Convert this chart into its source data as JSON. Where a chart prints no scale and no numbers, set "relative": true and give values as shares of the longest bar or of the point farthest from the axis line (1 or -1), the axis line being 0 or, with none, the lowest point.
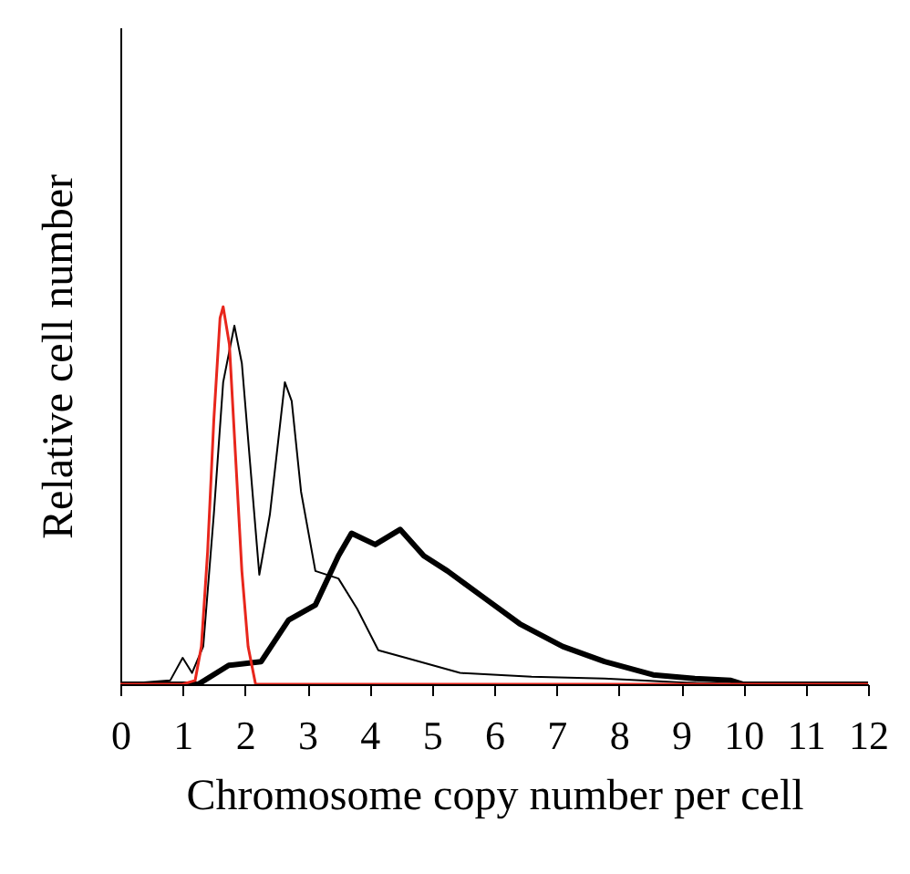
{
  "chart_data": {
    "type": "line",
    "relative": true,
    "xlabel": "Chromosome copy number per cell",
    "ylabel": "Relative cell number",
    "xlim": [
      0,
      12
    ],
    "xticks": [
      0,
      1,
      2,
      3,
      4,
      5,
      6,
      7,
      8,
      9,
      10,
      11,
      12
    ],
    "grid": false,
    "marker": "none",
    "line_style": "solid",
    "series": [
      {
        "color": "#000000",
        "x": [
          0,
          0.8,
          1.0,
          1.15,
          1.33,
          1.5,
          1.65,
          1.83,
          1.95,
          2.1,
          2.23,
          2.4,
          2.64,
          2.75,
          2.9,
          3.13,
          3.5,
          3.8,
          4.14,
          4.58,
          5.45,
          6.6,
          7.77,
          9.0,
          10.0,
          12
        ],
        "values": [
          0,
          0.01,
          0.07,
          0.03,
          0.1,
          0.45,
          0.8,
          0.95,
          0.85,
          0.55,
          0.29,
          0.45,
          0.8,
          0.75,
          0.51,
          0.3,
          0.28,
          0.2,
          0.09,
          0.07,
          0.03,
          0.02,
          0.015,
          0.005,
          0,
          0
        ]
      },
      {
        "color": "#000000",
        "x": [
          0,
          1.25,
          1.74,
          2.26,
          2.7,
          3.13,
          3.5,
          3.71,
          4.09,
          4.49,
          4.87,
          5.25,
          5.83,
          6.41,
          7.1,
          7.77,
          8.55,
          9.22,
          9.8,
          10.0,
          12
        ],
        "values": [
          0,
          0,
          0.05,
          0.06,
          0.17,
          0.21,
          0.34,
          0.4,
          0.37,
          0.41,
          0.34,
          0.3,
          0.23,
          0.16,
          0.1,
          0.06,
          0.025,
          0.015,
          0.01,
          0,
          0
        ]
      },
      {
        "color": "#e8261c",
        "x": [
          0,
          1.0,
          1.2,
          1.3,
          1.4,
          1.5,
          1.6,
          1.65,
          1.75,
          1.85,
          1.95,
          2.05,
          2.17,
          12
        ],
        "values": [
          0,
          0,
          0.01,
          0.1,
          0.35,
          0.7,
          0.97,
          1,
          0.9,
          0.6,
          0.3,
          0.1,
          0,
          0
        ]
      }
    ]
  }
}
